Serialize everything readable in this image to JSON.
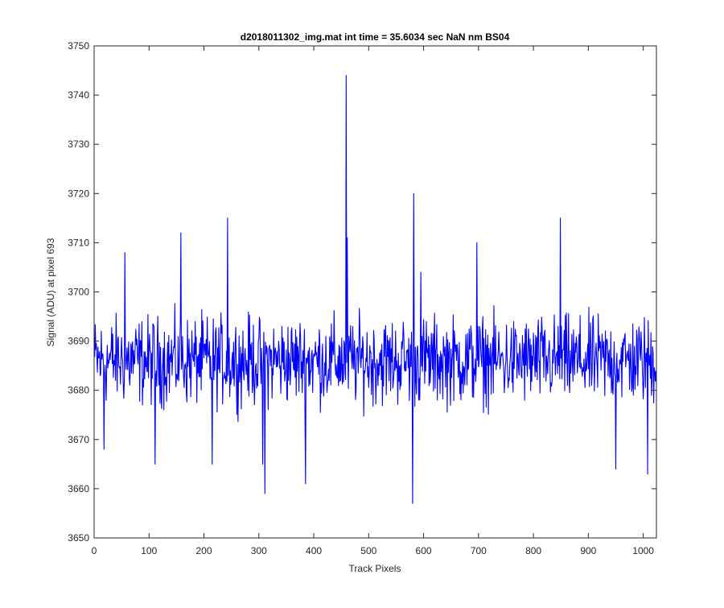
{
  "chart_data": {
    "type": "line",
    "title": "d2018011302_img.mat int time = 35.6034 sec  NaN nm BS04",
    "xlabel": "Track Pixels",
    "ylabel": "Signal (ADU) at pixel 693",
    "xlim": [
      0,
      1024
    ],
    "ylim": [
      3650,
      3750
    ],
    "xticks": [
      0,
      100,
      200,
      300,
      400,
      500,
      600,
      700,
      800,
      900,
      1000
    ],
    "yticks": [
      3650,
      3660,
      3670,
      3680,
      3690,
      3700,
      3710,
      3720,
      3730,
      3740,
      3750
    ],
    "grid": false,
    "legend": "none",
    "line_color": "#0000ff",
    "series": [
      {
        "n_points": 1024,
        "x_start": 1,
        "baseline": 3686,
        "noise_amplitude": 13,
        "peaks": [
          {
            "x": 459,
            "y": 3744
          },
          {
            "x": 582,
            "y": 3720
          },
          {
            "x": 243,
            "y": 3715
          },
          {
            "x": 849,
            "y": 3715
          },
          {
            "x": 158,
            "y": 3712
          },
          {
            "x": 461,
            "y": 3711
          },
          {
            "x": 56,
            "y": 3708
          },
          {
            "x": 697,
            "y": 3710
          },
          {
            "x": 595,
            "y": 3704
          }
        ],
        "troughs": [
          {
            "x": 580,
            "y": 3657
          },
          {
            "x": 311,
            "y": 3659
          },
          {
            "x": 385,
            "y": 3661
          },
          {
            "x": 1008,
            "y": 3663
          },
          {
            "x": 307,
            "y": 3665
          },
          {
            "x": 111,
            "y": 3665
          },
          {
            "x": 215,
            "y": 3665
          },
          {
            "x": 950,
            "y": 3664
          },
          {
            "x": 18,
            "y": 3668
          }
        ]
      }
    ]
  }
}
